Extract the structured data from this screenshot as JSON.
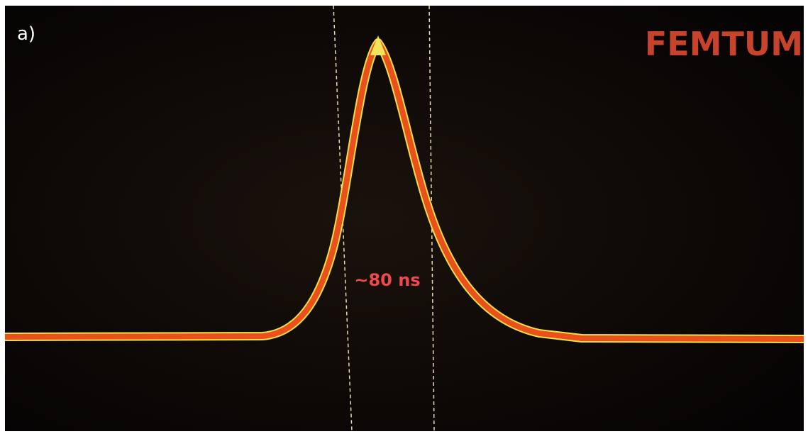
{
  "panel_label": "a)",
  "logo": "FEMTUM",
  "annotation": "~80 ns"
}
